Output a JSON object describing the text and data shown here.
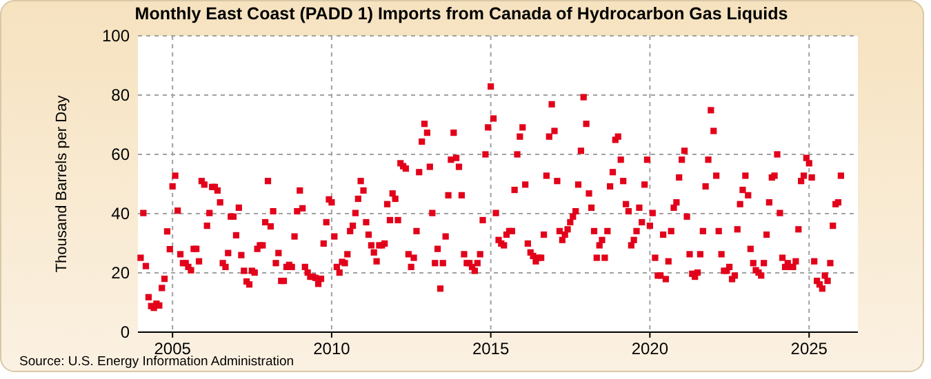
{
  "chart_data": {
    "type": "scatter",
    "title": "Monthly East Coast (PADD 1) Imports from Canada of Hydrocarbon Gas Liquids",
    "ylabel": "Thousand Barrels per Day",
    "annotations": [
      "Source: U.S. Energy Information Administration"
    ],
    "marker": "square",
    "grid": true,
    "xlim": [
      "2003-12-01",
      "2026-07-15"
    ],
    "xticks": [
      {
        "value": "2005-01-01",
        "label": "2005"
      },
      {
        "value": "2010-01-01",
        "label": "2010"
      },
      {
        "value": "2015-01-01",
        "label": "2015"
      },
      {
        "value": "2020-01-01",
        "label": "2020"
      },
      {
        "value": "2025-01-01",
        "label": "2025"
      }
    ],
    "ylim": [
      0,
      100
    ],
    "yticks": [
      0,
      20,
      40,
      60,
      80,
      100
    ],
    "series": [
      {
        "color": "#e2001a",
        "x": [
          "2004-01",
          "2004-02",
          "2004-03",
          "2004-04",
          "2004-05",
          "2004-06",
          "2004-07",
          "2004-08",
          "2004-09",
          "2004-10",
          "2004-11",
          "2004-12",
          "2005-01",
          "2005-02",
          "2005-03",
          "2005-04",
          "2005-05",
          "2005-06",
          "2005-07",
          "2005-08",
          "2005-09",
          "2005-10",
          "2005-11",
          "2005-12",
          "2006-01",
          "2006-02",
          "2006-03",
          "2006-04",
          "2006-05",
          "2006-06",
          "2006-07",
          "2006-08",
          "2006-09",
          "2006-10",
          "2006-11",
          "2006-12",
          "2007-01",
          "2007-02",
          "2007-03",
          "2007-04",
          "2007-05",
          "2007-06",
          "2007-07",
          "2007-08",
          "2007-09",
          "2007-10",
          "2007-11",
          "2007-12",
          "2008-01",
          "2008-02",
          "2008-03",
          "2008-04",
          "2008-05",
          "2008-06",
          "2008-07",
          "2008-08",
          "2008-09",
          "2008-10",
          "2008-11",
          "2008-12",
          "2009-01",
          "2009-02",
          "2009-03",
          "2009-04",
          "2009-05",
          "2009-06",
          "2009-07",
          "2009-08",
          "2009-09",
          "2009-10",
          "2009-11",
          "2009-12",
          "2010-01",
          "2010-02",
          "2010-03",
          "2010-04",
          "2010-05",
          "2010-06",
          "2010-07",
          "2010-08",
          "2010-09",
          "2010-10",
          "2010-11",
          "2010-12",
          "2011-01",
          "2011-02",
          "2011-03",
          "2011-04",
          "2011-05",
          "2011-06",
          "2011-07",
          "2011-08",
          "2011-09",
          "2011-10",
          "2011-11",
          "2011-12",
          "2012-01",
          "2012-02",
          "2012-03",
          "2012-04",
          "2012-05",
          "2012-06",
          "2012-07",
          "2012-08",
          "2012-09",
          "2012-10",
          "2012-11",
          "2012-12",
          "2013-01",
          "2013-02",
          "2013-03",
          "2013-04",
          "2013-05",
          "2013-06",
          "2013-07",
          "2013-08",
          "2013-09",
          "2013-10",
          "2013-11",
          "2013-12",
          "2014-01",
          "2014-02",
          "2014-03",
          "2014-04",
          "2014-05",
          "2014-06",
          "2014-07",
          "2014-08",
          "2014-09",
          "2014-10",
          "2014-11",
          "2014-12",
          "2015-01",
          "2015-02",
          "2015-03",
          "2015-04",
          "2015-05",
          "2015-06",
          "2015-07",
          "2015-08",
          "2015-09",
          "2015-10",
          "2015-11",
          "2015-12",
          "2016-01",
          "2016-02",
          "2016-03",
          "2016-04",
          "2016-05",
          "2016-06",
          "2016-07",
          "2016-08",
          "2016-09",
          "2016-10",
          "2016-11",
          "2016-12",
          "2017-01",
          "2017-02",
          "2017-03",
          "2017-04",
          "2017-05",
          "2017-06",
          "2017-07",
          "2017-08",
          "2017-09",
          "2017-10",
          "2017-11",
          "2017-12",
          "2018-01",
          "2018-02",
          "2018-03",
          "2018-04",
          "2018-05",
          "2018-06",
          "2018-07",
          "2018-08",
          "2018-09",
          "2018-10",
          "2018-11",
          "2018-12",
          "2019-01",
          "2019-02",
          "2019-03",
          "2019-04",
          "2019-05",
          "2019-06",
          "2019-07",
          "2019-08",
          "2019-09",
          "2019-10",
          "2019-11",
          "2019-12",
          "2020-01",
          "2020-02",
          "2020-03",
          "2020-04",
          "2020-05",
          "2020-06",
          "2020-07",
          "2020-08",
          "2020-09",
          "2020-10",
          "2020-11",
          "2020-12",
          "2021-01",
          "2021-02",
          "2021-03",
          "2021-04",
          "2021-05",
          "2021-06",
          "2021-07",
          "2021-08",
          "2021-09",
          "2021-10",
          "2021-11",
          "2021-12",
          "2022-01",
          "2022-02",
          "2022-03",
          "2022-04",
          "2022-05",
          "2022-06",
          "2022-07",
          "2022-08",
          "2022-09",
          "2022-10",
          "2022-11",
          "2022-12",
          "2023-01",
          "2023-02",
          "2023-03",
          "2023-04",
          "2023-05",
          "2023-06",
          "2023-07",
          "2023-08",
          "2023-09",
          "2023-10",
          "2023-11",
          "2023-12",
          "2024-01",
          "2024-02",
          "2024-03",
          "2024-04",
          "2024-05",
          "2024-06",
          "2024-07",
          "2024-08",
          "2024-09",
          "2024-10",
          "2024-11",
          "2024-12",
          "2025-01",
          "2025-02",
          "2025-03",
          "2025-04",
          "2025-05",
          "2025-06",
          "2025-07",
          "2025-08",
          "2025-09",
          "2025-10",
          "2025-11",
          "2025-12",
          "2026-01"
        ],
        "values": [
          25.1,
          40.2,
          22.3,
          11.8,
          8.8,
          8.2,
          9.6,
          9,
          14.9,
          18,
          34,
          28,
          49.2,
          52.8,
          41,
          26.3,
          23.3,
          23.3,
          22,
          20.9,
          28.1,
          28.1,
          23.9,
          51,
          49.8,
          35.9,
          40.2,
          49,
          49,
          47.8,
          43.8,
          23.3,
          22,
          26.7,
          39,
          39,
          32.7,
          42,
          26,
          20.7,
          17.1,
          16.1,
          20.7,
          20.1,
          28.1,
          29.3,
          29.3,
          37.1,
          51,
          35.7,
          40.8,
          23.3,
          26.7,
          17.3,
          17.3,
          22,
          22.7,
          22,
          32.3,
          40.8,
          47.8,
          41.8,
          22,
          20.1,
          18.7,
          18.7,
          18.3,
          16.3,
          18,
          29.9,
          37.1,
          44.8,
          43.8,
          32.3,
          22,
          20.1,
          23.7,
          23.3,
          26.3,
          34.1,
          35.9,
          40.2,
          45,
          51,
          47.8,
          37.1,
          32.9,
          29.3,
          26.9,
          23.9,
          29.3,
          29.3,
          29.9,
          43.2,
          37.8,
          46.8,
          45,
          37.8,
          57,
          56,
          55.2,
          26.3,
          22,
          25.1,
          34.1,
          54,
          64.3,
          70.3,
          67.3,
          55.8,
          40.2,
          23.3,
          28.1,
          14.7,
          23.3,
          32.3,
          46.2,
          58.2,
          67.3,
          58.8,
          55.8,
          46.2,
          26.3,
          23.3,
          23.3,
          22,
          20.7,
          23.3,
          26.3,
          37.8,
          60,
          69.1,
          82.9,
          72.1,
          40.2,
          31.1,
          29.9,
          29.3,
          32.9,
          34.1,
          34.1,
          48,
          60,
          66,
          69.1,
          49.8,
          29.9,
          26.9,
          25.7,
          23.9,
          25.1,
          25.1,
          32.9,
          52.8,
          66,
          76.9,
          67.9,
          51,
          34.1,
          31.1,
          32.9,
          34.7,
          37.1,
          39,
          40.8,
          49.8,
          61.2,
          79.3,
          70.3,
          46.8,
          42,
          34.1,
          25.1,
          29.3,
          31.1,
          25.1,
          34.1,
          49.2,
          54,
          64.9,
          66,
          58.2,
          51,
          43.2,
          40.8,
          29.3,
          31.1,
          34.1,
          42,
          37.1,
          49.8,
          58.2,
          35.9,
          40.2,
          25.1,
          19.1,
          19.1,
          32.9,
          17.9,
          23.9,
          34.1,
          42,
          43.8,
          52.2,
          58.2,
          61.2,
          39,
          26.3,
          19.7,
          18.7,
          20.1,
          26.3,
          34.1,
          49.2,
          58.2,
          74.9,
          67.9,
          52.8,
          34.1,
          26.3,
          20.7,
          20.7,
          22,
          17.9,
          19.1,
          34.7,
          43.2,
          48,
          52.8,
          46.2,
          28.1,
          23.3,
          20.9,
          20.1,
          19.1,
          23.3,
          32.9,
          43.8,
          52.2,
          52.8,
          60,
          40.2,
          25.1,
          22,
          23.3,
          22,
          22,
          23.9,
          34.7,
          51,
          52.8,
          58.8,
          57,
          52.2,
          23.9,
          17.3,
          16.1,
          14.7,
          19.1,
          17.3,
          23.3,
          35.9,
          43.2,
          43.8,
          52.8
        ]
      }
    ]
  }
}
